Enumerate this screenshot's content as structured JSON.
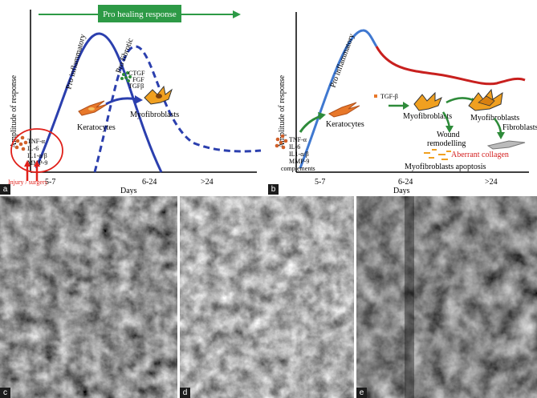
{
  "panels": {
    "a": {
      "label": "a",
      "banner": "Pro healing response",
      "ylabel": "Amplitude of response",
      "xlabel": "Days",
      "ticks": [
        "5-7",
        "6-24",
        ">24"
      ],
      "pro_inflammatory": "Pro inflammatory",
      "pro_fibrotic": "Pro fibrotic",
      "growth_factors": [
        "CTGF",
        "FGF",
        "TGFβ"
      ],
      "cytokines": [
        "TNF-α",
        "IL-6",
        "IL1-α/β",
        "MMP-9"
      ],
      "keratocytes": "Keratocytes",
      "myofibroblasts": "Myofibroblasts",
      "injury": "Injury / surgery"
    },
    "b": {
      "label": "b",
      "ylabel": "Amplitude of response",
      "xlabel": "Days",
      "ticks": [
        "5-7",
        "6-24",
        ">24"
      ],
      "pro_inflammatory": "Pro inflammatory",
      "tgf": "TGF-β",
      "keratocytes": "Keratocytes",
      "myofibroblasts_1": "Myofibroblasts",
      "myofibroblasts_2": "Myofibroblasts",
      "fibroblasts": "Fibroblasts",
      "wound_remodelling_1": "Wound",
      "wound_remodelling_2": "remodelling",
      "apoptosis": "Myofibroblasts apoptosis",
      "aberrant_collagen": "Aberrant collagen",
      "cytokines": [
        "TNF-α",
        "IL-6",
        "IL1-α/β",
        "MMP-9",
        "complements"
      ]
    },
    "c": {
      "label": "c"
    },
    "d": {
      "label": "d"
    },
    "e": {
      "label": "e"
    }
  },
  "colors": {
    "blue_curve": "#2b3fae",
    "light_blue_curve": "#3f78d0",
    "red_curve": "#c8201e",
    "green_banner": "#2d9a46",
    "green_arrow": "#2e8b3a",
    "injury_red": "#e0201a",
    "aberrant_red": "#d42020"
  }
}
